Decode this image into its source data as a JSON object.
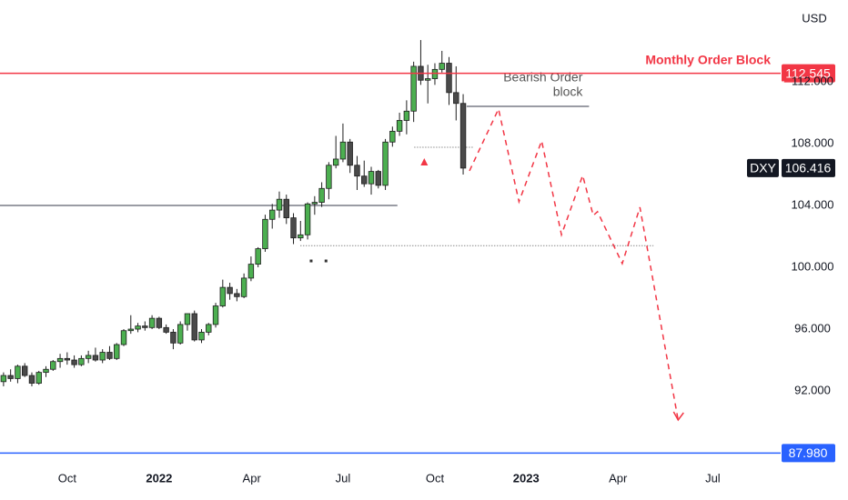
{
  "chart_data": {
    "type": "candlestick",
    "symbol": "DXY",
    "unit": "USD",
    "up_color": "#4caf50",
    "down_color": "#4a4a4a",
    "x": [
      0.5,
      1.5,
      2.5,
      3.5,
      4.5,
      5.5,
      6.5,
      7.5,
      8.5,
      9.5,
      10.5,
      11.5,
      12.5,
      13.5,
      14.5,
      15.5,
      16.5,
      17.5,
      18.5,
      19.5,
      20.5,
      21.5,
      22.5,
      23.5,
      24.5,
      25.5,
      26.5,
      27.5,
      28.5,
      29.5,
      30.5,
      31.5,
      32.5,
      33.5,
      34.5,
      35.5,
      36.5,
      37.5,
      38.5,
      39.5,
      40.5,
      41.5,
      42.5,
      43.5,
      44.5,
      45.5,
      46.5,
      47.5,
      48.5,
      49.5,
      50.5,
      51.5,
      52.5,
      53.5,
      54.5,
      55.5,
      56.5,
      57.5,
      58.5,
      59.5,
      60.5,
      61.5,
      62.5,
      63.5,
      64.5,
      65.5
    ],
    "ohlc": [
      [
        92.6,
        93.2,
        92.3,
        93.0
      ],
      [
        93.0,
        93.4,
        92.6,
        92.8
      ],
      [
        92.8,
        93.7,
        92.5,
        93.6
      ],
      [
        93.6,
        93.8,
        92.9,
        93.0
      ],
      [
        93.0,
        93.2,
        92.3,
        92.5
      ],
      [
        92.5,
        93.3,
        92.4,
        93.2
      ],
      [
        93.2,
        93.6,
        92.9,
        93.4
      ],
      [
        93.4,
        94.0,
        93.3,
        93.9
      ],
      [
        93.9,
        94.4,
        93.5,
        94.1
      ],
      [
        94.1,
        94.5,
        93.7,
        94.0
      ],
      [
        94.0,
        94.3,
        93.5,
        93.7
      ],
      [
        93.7,
        94.3,
        93.6,
        94.1
      ],
      [
        94.1,
        94.6,
        93.8,
        94.3
      ],
      [
        94.3,
        94.8,
        93.9,
        94.0
      ],
      [
        94.0,
        94.7,
        93.8,
        94.5
      ],
      [
        94.5,
        94.9,
        94.0,
        94.1
      ],
      [
        94.1,
        95.1,
        94.0,
        95.0
      ],
      [
        95.0,
        96.0,
        94.9,
        95.9
      ],
      [
        95.9,
        96.9,
        95.7,
        96.0
      ],
      [
        96.0,
        96.4,
        95.8,
        96.2
      ],
      [
        96.2,
        96.5,
        95.9,
        96.1
      ],
      [
        96.1,
        96.9,
        96.0,
        96.7
      ],
      [
        96.7,
        96.8,
        96.0,
        96.1
      ],
      [
        96.1,
        96.3,
        95.7,
        95.8
      ],
      [
        95.8,
        96.0,
        94.7,
        95.1
      ],
      [
        95.1,
        96.5,
        95.0,
        96.3
      ],
      [
        96.3,
        97.0,
        95.9,
        97.0
      ],
      [
        97.0,
        97.2,
        95.2,
        95.3
      ],
      [
        95.3,
        96.0,
        95.1,
        95.8
      ],
      [
        95.8,
        96.4,
        95.6,
        96.3
      ],
      [
        96.3,
        97.7,
        96.1,
        97.5
      ],
      [
        97.5,
        99.2,
        97.4,
        98.7
      ],
      [
        98.7,
        99.0,
        97.9,
        98.3
      ],
      [
        98.3,
        98.6,
        97.8,
        98.1
      ],
      [
        98.1,
        99.6,
        98.0,
        99.3
      ],
      [
        99.3,
        100.7,
        99.1,
        100.2
      ],
      [
        100.2,
        101.3,
        100.0,
        101.2
      ],
      [
        101.2,
        103.4,
        101.0,
        103.1
      ],
      [
        103.1,
        104.1,
        102.5,
        103.7
      ],
      [
        103.7,
        104.9,
        103.2,
        104.4
      ],
      [
        104.4,
        104.7,
        102.8,
        103.2
      ],
      [
        103.2,
        103.5,
        101.5,
        101.9
      ],
      [
        101.9,
        103.0,
        101.7,
        102.1
      ],
      [
        102.1,
        104.2,
        101.8,
        104.1
      ],
      [
        104.1,
        104.6,
        103.4,
        104.2
      ],
      [
        104.2,
        105.5,
        103.9,
        105.1
      ],
      [
        105.1,
        106.8,
        104.4,
        106.6
      ],
      [
        106.6,
        108.5,
        106.4,
        107.0
      ],
      [
        107.0,
        109.3,
        106.8,
        108.1
      ],
      [
        108.1,
        108.3,
        106.1,
        106.6
      ],
      [
        106.6,
        107.2,
        105.0,
        105.9
      ],
      [
        105.9,
        106.9,
        105.2,
        105.4
      ],
      [
        105.4,
        106.5,
        104.7,
        106.2
      ],
      [
        106.2,
        106.3,
        105.1,
        105.3
      ],
      [
        105.3,
        108.3,
        105.0,
        108.1
      ],
      [
        108.1,
        109.1,
        107.8,
        108.8
      ],
      [
        108.8,
        110.0,
        108.5,
        109.5
      ],
      [
        109.5,
        110.8,
        108.6,
        110.1
      ],
      [
        110.1,
        113.3,
        109.4,
        113.0
      ],
      [
        113.0,
        114.7,
        111.8,
        112.1
      ],
      [
        112.1,
        113.1,
        110.6,
        112.2
      ],
      [
        112.2,
        113.2,
        111.8,
        112.8
      ],
      [
        112.8,
        114.0,
        112.6,
        113.2
      ],
      [
        113.2,
        113.6,
        110.5,
        111.3
      ],
      [
        111.3,
        113.0,
        109.5,
        110.6
      ],
      [
        110.6,
        111.2,
        106.0,
        106.416
      ]
    ],
    "xlim": [
      0,
      110.4
    ],
    "ylim": [
      87.18,
      117.29
    ],
    "xticks": [
      {
        "value": 9.5,
        "label": "Oct"
      },
      {
        "value": 22.5,
        "label": "2022"
      },
      {
        "value": 35.6,
        "label": "Apr"
      },
      {
        "value": 48.5,
        "label": "Jul"
      },
      {
        "value": 61.5,
        "label": "Oct"
      },
      {
        "value": 74.4,
        "label": "2023"
      },
      {
        "value": 87.4,
        "label": "Apr"
      },
      {
        "value": 100.8,
        "label": "Jul"
      }
    ],
    "yticks": [
      {
        "value": 92,
        "label": "92.000"
      },
      {
        "value": 96,
        "label": "96.000"
      },
      {
        "value": 100,
        "label": "100.000"
      },
      {
        "value": 104,
        "label": "104.000"
      },
      {
        "value": 108,
        "label": "108.000"
      },
      {
        "value": 112,
        "label": "112.000"
      }
    ],
    "levels": [
      {
        "value": 112.545,
        "color": "#f23645",
        "label": "Monthly Order Block"
      },
      {
        "value": 87.98,
        "value_label": "87.980",
        "color": "#2962ff"
      }
    ],
    "segments": [
      {
        "value": 104.0,
        "x": [
          0,
          56.2
        ],
        "color": "#787b86"
      },
      {
        "value": 110.41,
        "x": [
          66,
          83.3
        ],
        "color": "#787b86",
        "text": [
          "Bearish Order",
          "block"
        ]
      }
    ],
    "dotted": [
      {
        "value": 107.76,
        "x": [
          58.6,
          66.9
        ]
      },
      {
        "value": 101.4,
        "x": [
          42.5,
          92.4
        ]
      }
    ],
    "marker": {
      "x": 60,
      "value": 106.82,
      "color": "#f23645"
    },
    "dots": {
      "x": [
        44,
        46.1
      ],
      "values": [
        100.41,
        100.41
      ]
    },
    "projection": {
      "color": "#f23645",
      "x": [
        66.4,
        70.5,
        73.4,
        76.6,
        79.4,
        82.4,
        83.9,
        84.5,
        88.0,
        90.5,
        95.9
      ],
      "values": [
        106.24,
        110.24,
        104.24,
        108.18,
        102.1,
        105.94,
        103.35,
        103.6,
        100.24,
        103.88,
        90.12
      ]
    }
  }
}
